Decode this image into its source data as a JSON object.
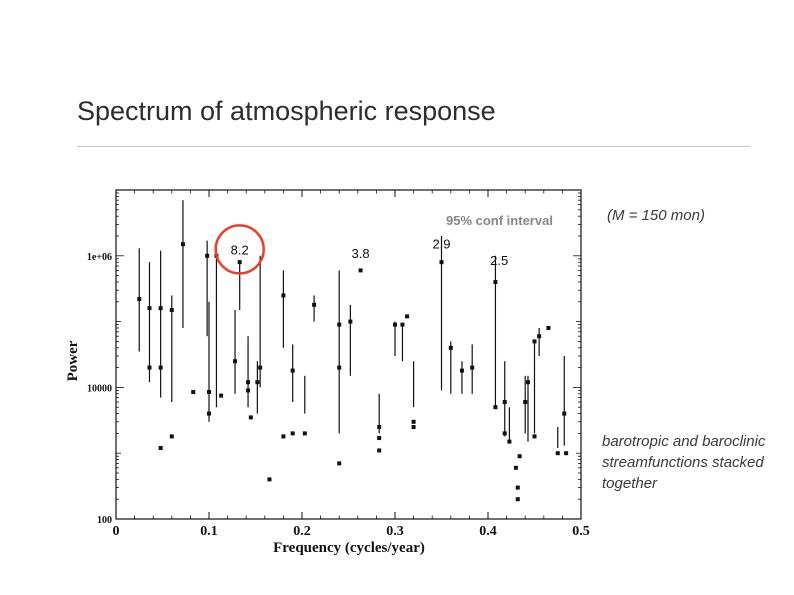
{
  "slide": {
    "title": "Spectrum of atmospheric response",
    "note_m": "(M = 150 mon)",
    "note_streamfunctions": "barotropic and baroclinic streamfunctions stacked together"
  },
  "chart_data": {
    "type": "scatter",
    "xlabel": "Frequency (cycles/year)",
    "ylabel": "Power",
    "xlim": [
      0,
      0.5
    ],
    "ylim": [
      100,
      10000000
    ],
    "yscale": "log",
    "x_ticks": [
      "0",
      "0.1",
      "0.2",
      "0.3",
      "0.4",
      "0.5"
    ],
    "y_ticks": [
      "100",
      "10000",
      "1e+06"
    ],
    "conf_label": "95% conf interval",
    "conf_label_color": "#888888",
    "highlight_color": "#e8402a",
    "annotations": [
      {
        "text": "8.2",
        "x": 0.133,
        "y": 1050000,
        "highlight": true
      },
      {
        "text": "3.8",
        "x": 0.263,
        "y": 930000
      },
      {
        "text": "2.9",
        "x": 0.35,
        "y": 1300000
      },
      {
        "text": "2.5",
        "x": 0.412,
        "y": 730000
      }
    ],
    "series": [
      {
        "points": [
          {
            "x": 0.025,
            "y": 220000,
            "lo": 35000,
            "hi": 1300000
          },
          {
            "x": 0.036,
            "y": 160000,
            "lo": 12000,
            "hi": 800000
          },
          {
            "x": 0.036,
            "y": 20000
          },
          {
            "x": 0.048,
            "y": 160000,
            "lo": 7000,
            "hi": 1200000
          },
          {
            "x": 0.048,
            "y": 20000
          },
          {
            "x": 0.048,
            "y": 1200
          },
          {
            "x": 0.06,
            "y": 150000,
            "lo": 6000,
            "hi": 250000
          },
          {
            "x": 0.06,
            "y": 1800
          },
          {
            "x": 0.072,
            "y": 1500000,
            "lo": 80000,
            "hi": 7000000
          },
          {
            "x": 0.083,
            "y": 8500
          },
          {
            "x": 0.098,
            "y": 1000000,
            "lo": 60000,
            "hi": 1700000
          },
          {
            "x": 0.1,
            "y": 8500,
            "lo": 3000,
            "hi": 200000
          },
          {
            "x": 0.1,
            "y": 4000
          },
          {
            "x": 0.108,
            "y": 1000000,
            "lo": 5000,
            "hi": 1700000
          },
          {
            "x": 0.113,
            "y": 7500
          },
          {
            "x": 0.128,
            "y": 25000,
            "lo": 8000,
            "hi": 150000
          },
          {
            "x": 0.133,
            "y": 800000,
            "lo": 150000,
            "hi": 850000
          },
          {
            "x": 0.142,
            "y": 12000,
            "lo": 5000,
            "hi": 60000
          },
          {
            "x": 0.142,
            "y": 9000
          },
          {
            "x": 0.145,
            "y": 3500
          },
          {
            "x": 0.152,
            "y": 12000,
            "lo": 4000,
            "hi": 25000
          },
          {
            "x": 0.155,
            "y": 20000,
            "lo": 10000,
            "hi": 1000000
          },
          {
            "x": 0.165,
            "y": 400
          },
          {
            "x": 0.18,
            "y": 250000,
            "lo": 40000,
            "hi": 600000
          },
          {
            "x": 0.18,
            "y": 1800
          },
          {
            "x": 0.19,
            "y": 2000,
            "lo": 6000,
            "hi": 45000
          },
          {
            "x": 0.19,
            "y": 18000
          },
          {
            "x": 0.203,
            "y": 2000,
            "lo": 4000,
            "hi": 15000
          },
          {
            "x": 0.213,
            "y": 180000,
            "lo": 100000,
            "hi": 250000
          },
          {
            "x": 0.24,
            "y": 90000,
            "lo": 2000,
            "hi": 600000
          },
          {
            "x": 0.24,
            "y": 20000
          },
          {
            "x": 0.24,
            "y": 700
          },
          {
            "x": 0.252,
            "y": 100000,
            "lo": 15000,
            "hi": 180000
          },
          {
            "x": 0.263,
            "y": 600000
          },
          {
            "x": 0.283,
            "y": 2500,
            "lo": 2000,
            "hi": 8000
          },
          {
            "x": 0.283,
            "y": 1700
          },
          {
            "x": 0.283,
            "y": 1100
          },
          {
            "x": 0.3,
            "y": 90000,
            "lo": 30000,
            "hi": 100000
          },
          {
            "x": 0.308,
            "y": 90000,
            "lo": 25000,
            "hi": 90000
          },
          {
            "x": 0.313,
            "y": 120000
          },
          {
            "x": 0.32,
            "y": 2500,
            "lo": 5000,
            "hi": 25000
          },
          {
            "x": 0.32,
            "y": 3000
          },
          {
            "x": 0.35,
            "y": 800000,
            "lo": 9000,
            "hi": 2000000
          },
          {
            "x": 0.36,
            "y": 40000,
            "lo": 8000,
            "hi": 50000
          },
          {
            "x": 0.372,
            "y": 18000,
            "lo": 8000,
            "hi": 25000
          },
          {
            "x": 0.383,
            "y": 20000,
            "lo": 8000,
            "hi": 45000
          },
          {
            "x": 0.408,
            "y": 400000,
            "lo": 5000,
            "hi": 1000000
          },
          {
            "x": 0.408,
            "y": 5000
          },
          {
            "x": 0.418,
            "y": 6000,
            "lo": 1800,
            "hi": 25000
          },
          {
            "x": 0.418,
            "y": 2000
          },
          {
            "x": 0.423,
            "y": 1500,
            "lo": 1500,
            "hi": 5000
          },
          {
            "x": 0.43,
            "y": 600
          },
          {
            "x": 0.432,
            "y": 200
          },
          {
            "x": 0.432,
            "y": 300
          },
          {
            "x": 0.434,
            "y": 900
          },
          {
            "x": 0.44,
            "y": 6000,
            "lo": 2000,
            "hi": 15000
          },
          {
            "x": 0.443,
            "y": 12000,
            "lo": 1500,
            "hi": 15000
          },
          {
            "x": 0.45,
            "y": 50000,
            "lo": 2000,
            "hi": 50000
          },
          {
            "x": 0.45,
            "y": 1800
          },
          {
            "x": 0.455,
            "y": 60000,
            "lo": 30000,
            "hi": 80000
          },
          {
            "x": 0.465,
            "y": 80000
          },
          {
            "x": 0.475,
            "y": 1000,
            "lo": 1200,
            "hi": 2500
          },
          {
            "x": 0.482,
            "y": 4000,
            "lo": 1300,
            "hi": 30000
          },
          {
            "x": 0.484,
            "y": 1000
          }
        ]
      }
    ]
  }
}
